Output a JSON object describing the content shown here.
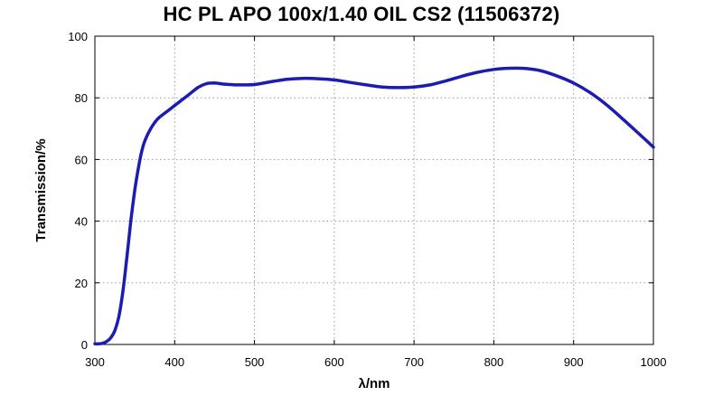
{
  "chart_data": {
    "type": "line",
    "title": "HC PL APO 100x/1.40 OIL CS2 (11506372)",
    "xlabel": "λ/nm",
    "ylabel": "Transmission/%",
    "xlim": [
      300,
      1000
    ],
    "ylim": [
      0,
      100
    ],
    "xticks": [
      300,
      400,
      500,
      600,
      700,
      800,
      900,
      1000
    ],
    "yticks": [
      0,
      20,
      40,
      60,
      80,
      100
    ],
    "grid": true,
    "line_color": "#1c1cb0",
    "series": [
      {
        "x": [
          300,
          305,
          310,
          315,
          320,
          325,
          330,
          335,
          340,
          345,
          350,
          355,
          360,
          365,
          370,
          375,
          380,
          390,
          400,
          410,
          420,
          430,
          440,
          450,
          460,
          470,
          480,
          500,
          520,
          540,
          560,
          580,
          600,
          620,
          640,
          660,
          680,
          700,
          720,
          740,
          760,
          780,
          800,
          820,
          840,
          860,
          880,
          900,
          920,
          940,
          960,
          980,
          1000
        ],
        "y": [
          0.2,
          0.2,
          0.4,
          1.0,
          2.2,
          4.5,
          9,
          17,
          28,
          40,
          50,
          58,
          64,
          67.5,
          70,
          72,
          73.5,
          75.5,
          77.5,
          79.5,
          81.5,
          83.5,
          84.6,
          84.8,
          84.5,
          84.3,
          84.2,
          84.3,
          85.2,
          86.0,
          86.3,
          86.2,
          85.8,
          85.0,
          84.2,
          83.5,
          83.3,
          83.5,
          84.2,
          85.5,
          87.0,
          88.3,
          89.2,
          89.6,
          89.5,
          88.7,
          87.0,
          84.8,
          81.8,
          78.0,
          73.5,
          68.8,
          64.0
        ]
      }
    ]
  }
}
